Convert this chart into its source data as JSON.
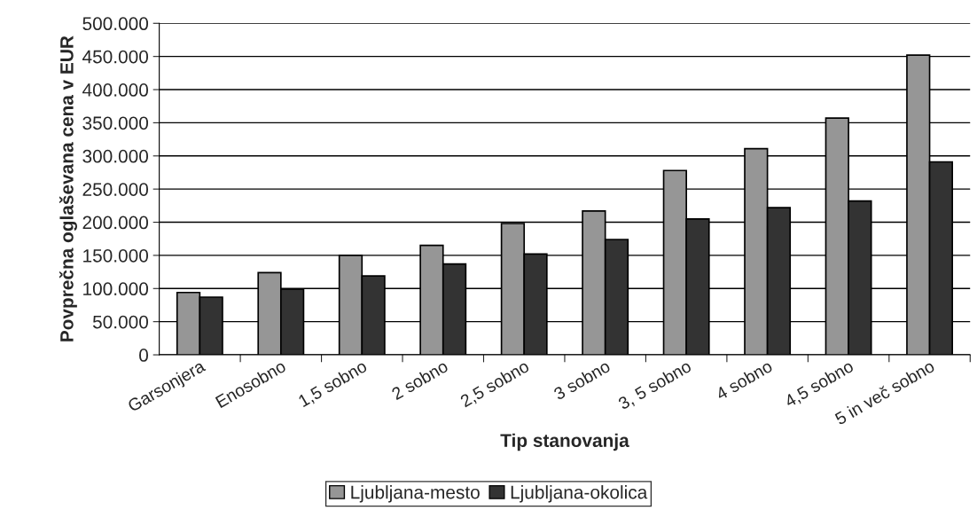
{
  "chart_data": {
    "type": "bar",
    "xlabel": "Tip stanovanja",
    "ylabel": "Povprečna oglaševana cena v EUR",
    "categories": [
      "Garsonjera",
      "Enosobno",
      "1,5 sobno",
      "2 sobno",
      "2,5 sobno",
      "3 sobno",
      "3, 5 sobno",
      "4 sobno",
      "4,5 sobno",
      "5 in več sobno"
    ],
    "series": [
      {
        "name": "Ljubljana-mesto",
        "color": "#969696",
        "values": [
          94000,
          124000,
          150000,
          165000,
          198000,
          217000,
          278000,
          311000,
          357000,
          452000
        ]
      },
      {
        "name": "Ljubljana-okolica",
        "color": "#333333",
        "values": [
          87000,
          99000,
          119000,
          137000,
          152000,
          174000,
          205000,
          222000,
          232000,
          291000
        ]
      }
    ],
    "ylim": [
      0,
      500000
    ],
    "yticks": [
      0,
      {
        "value": 50000,
        "label": "50.000"
      },
      {
        "value": 100000,
        "label": "100.000"
      },
      {
        "value": 150000,
        "label": "150.000"
      },
      {
        "value": 200000,
        "label": "200.000"
      },
      {
        "value": 250000,
        "label": "250.000"
      },
      {
        "value": 300000,
        "label": "300.000"
      },
      {
        "value": 350000,
        "label": "350.000"
      },
      {
        "value": 400000,
        "label": "400.000"
      },
      {
        "value": 450000,
        "label": "450.000"
      },
      {
        "value": 500000,
        "label": "500.000"
      }
    ],
    "grid": "y",
    "legend": "bottom"
  }
}
